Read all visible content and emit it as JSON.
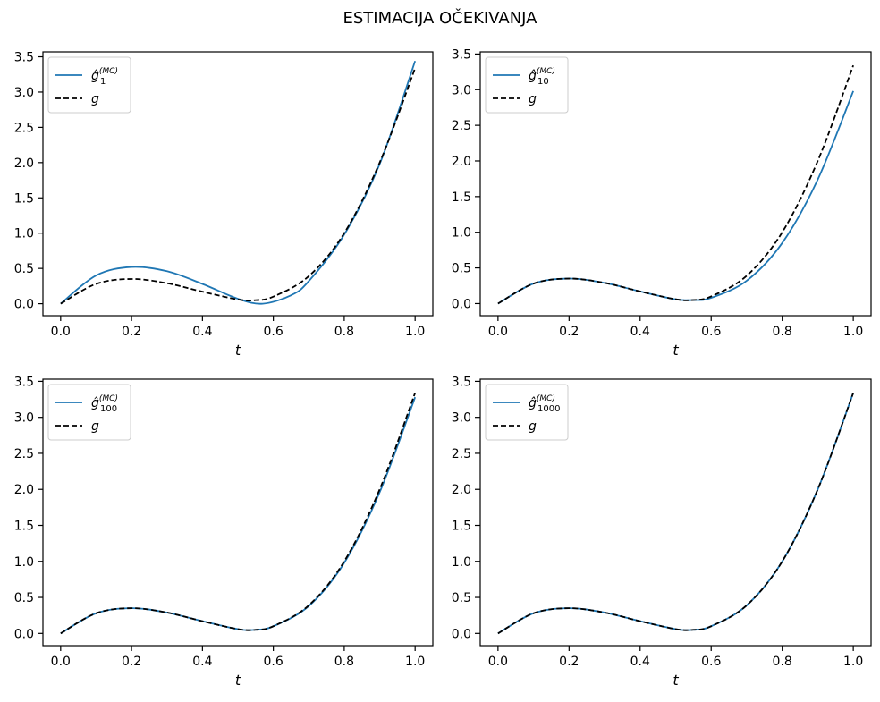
{
  "figure": {
    "title": "ESTIMACIJA OČEKIVANJA"
  },
  "colors": {
    "estimate": "#1f77b4",
    "true": "#000000"
  },
  "chart_data": [
    {
      "type": "line",
      "xlabel": "t",
      "ylabel": "",
      "xlim": [
        -0.05,
        1.05
      ],
      "ylim": [
        -0.17,
        3.57
      ],
      "xticks": [
        0.0,
        0.2,
        0.4,
        0.6,
        0.8,
        1.0
      ],
      "xtick_labels": [
        "0.0",
        "0.2",
        "0.4",
        "0.6",
        "0.8",
        "1.0"
      ],
      "yticks": [
        0.0,
        0.5,
        1.0,
        1.5,
        2.0,
        2.5,
        3.0,
        3.5
      ],
      "ytick_labels": [
        "0.0",
        "0.5",
        "1.0",
        "1.5",
        "2.0",
        "2.5",
        "3.0",
        "3.5"
      ],
      "legend": "top-left",
      "grid": false,
      "series": [
        {
          "name": "ĝ₁⁽ᴹᶜ⁾",
          "label_base": "ĝ",
          "label_sub": "1",
          "label_sup": "(MC)",
          "style": "solid",
          "x": [
            0.0,
            0.1,
            0.2,
            0.3,
            0.4,
            0.5,
            0.57,
            0.65,
            0.7,
            0.8,
            0.9,
            1.0
          ],
          "y": [
            0.0,
            0.4,
            0.52,
            0.46,
            0.28,
            0.07,
            0.0,
            0.12,
            0.32,
            0.98,
            1.98,
            3.44
          ]
        },
        {
          "name": "g",
          "label_base": "g",
          "style": "dashed",
          "x": [
            0.0,
            0.1,
            0.2,
            0.3,
            0.4,
            0.5,
            0.55,
            0.6,
            0.7,
            0.8,
            0.9,
            1.0
          ],
          "y": [
            0.0,
            0.28,
            0.35,
            0.29,
            0.17,
            0.06,
            0.05,
            0.1,
            0.39,
            1.0,
            2.0,
            3.34
          ]
        }
      ]
    },
    {
      "type": "line",
      "xlabel": "t",
      "ylabel": "",
      "xlim": [
        -0.05,
        1.05
      ],
      "ylim": [
        -0.17,
        3.53
      ],
      "xticks": [
        0.0,
        0.2,
        0.4,
        0.6,
        0.8,
        1.0
      ],
      "xtick_labels": [
        "0.0",
        "0.2",
        "0.4",
        "0.6",
        "0.8",
        "1.0"
      ],
      "yticks": [
        0.0,
        0.5,
        1.0,
        1.5,
        2.0,
        2.5,
        3.0,
        3.5
      ],
      "ytick_labels": [
        "0.0",
        "0.5",
        "1.0",
        "1.5",
        "2.0",
        "2.5",
        "3.0",
        "3.5"
      ],
      "legend": "top-left",
      "grid": false,
      "series": [
        {
          "name": "ĝ₁₀⁽ᴹᶜ⁾",
          "label_base": "ĝ",
          "label_sub": "10",
          "label_sup": "(MC)",
          "style": "solid",
          "x": [
            0.0,
            0.1,
            0.2,
            0.3,
            0.4,
            0.5,
            0.55,
            0.6,
            0.7,
            0.8,
            0.9,
            1.0
          ],
          "y": [
            0.0,
            0.28,
            0.35,
            0.29,
            0.17,
            0.06,
            0.05,
            0.08,
            0.32,
            0.85,
            1.74,
            2.98
          ]
        },
        {
          "name": "g",
          "label_base": "g",
          "style": "dashed",
          "x": [
            0.0,
            0.1,
            0.2,
            0.3,
            0.4,
            0.5,
            0.55,
            0.6,
            0.7,
            0.8,
            0.9,
            1.0
          ],
          "y": [
            0.0,
            0.28,
            0.35,
            0.29,
            0.17,
            0.06,
            0.05,
            0.1,
            0.39,
            1.0,
            2.0,
            3.34
          ]
        }
      ]
    },
    {
      "type": "line",
      "xlabel": "t",
      "ylabel": "",
      "xlim": [
        -0.05,
        1.05
      ],
      "ylim": [
        -0.17,
        3.53
      ],
      "xticks": [
        0.0,
        0.2,
        0.4,
        0.6,
        0.8,
        1.0
      ],
      "xtick_labels": [
        "0.0",
        "0.2",
        "0.4",
        "0.6",
        "0.8",
        "1.0"
      ],
      "yticks": [
        0.0,
        0.5,
        1.0,
        1.5,
        2.0,
        2.5,
        3.0,
        3.5
      ],
      "ytick_labels": [
        "0.0",
        "0.5",
        "1.0",
        "1.5",
        "2.0",
        "2.5",
        "3.0",
        "3.5"
      ],
      "legend": "top-left",
      "grid": false,
      "series": [
        {
          "name": "ĝ₁₀₀⁽ᴹᶜ⁾",
          "label_base": "ĝ",
          "label_sub": "100",
          "label_sup": "(MC)",
          "style": "solid",
          "x": [
            0.0,
            0.1,
            0.2,
            0.3,
            0.4,
            0.5,
            0.55,
            0.6,
            0.7,
            0.8,
            0.9,
            1.0
          ],
          "y": [
            0.0,
            0.28,
            0.35,
            0.29,
            0.17,
            0.06,
            0.05,
            0.1,
            0.38,
            0.98,
            1.96,
            3.28
          ]
        },
        {
          "name": "g",
          "label_base": "g",
          "style": "dashed",
          "x": [
            0.0,
            0.1,
            0.2,
            0.3,
            0.4,
            0.5,
            0.55,
            0.6,
            0.7,
            0.8,
            0.9,
            1.0
          ],
          "y": [
            0.0,
            0.28,
            0.35,
            0.29,
            0.17,
            0.06,
            0.05,
            0.1,
            0.39,
            1.0,
            2.0,
            3.34
          ]
        }
      ]
    },
    {
      "type": "line",
      "xlabel": "t",
      "ylabel": "",
      "xlim": [
        -0.05,
        1.05
      ],
      "ylim": [
        -0.17,
        3.53
      ],
      "xticks": [
        0.0,
        0.2,
        0.4,
        0.6,
        0.8,
        1.0
      ],
      "xtick_labels": [
        "0.0",
        "0.2",
        "0.4",
        "0.6",
        "0.8",
        "1.0"
      ],
      "yticks": [
        0.0,
        0.5,
        1.0,
        1.5,
        2.0,
        2.5,
        3.0,
        3.5
      ],
      "ytick_labels": [
        "0.0",
        "0.5",
        "1.0",
        "1.5",
        "2.0",
        "2.5",
        "3.0",
        "3.5"
      ],
      "legend": "top-left",
      "grid": false,
      "series": [
        {
          "name": "ĝ₁₀₀₀⁽ᴹᶜ⁾",
          "label_base": "ĝ",
          "label_sub": "1000",
          "label_sup": "(MC)",
          "style": "solid",
          "x": [
            0.0,
            0.1,
            0.2,
            0.3,
            0.4,
            0.5,
            0.55,
            0.6,
            0.7,
            0.8,
            0.9,
            1.0
          ],
          "y": [
            0.0,
            0.28,
            0.35,
            0.29,
            0.17,
            0.06,
            0.05,
            0.1,
            0.39,
            1.0,
            2.0,
            3.34
          ]
        },
        {
          "name": "g",
          "label_base": "g",
          "style": "dashed",
          "x": [
            0.0,
            0.1,
            0.2,
            0.3,
            0.4,
            0.5,
            0.55,
            0.6,
            0.7,
            0.8,
            0.9,
            1.0
          ],
          "y": [
            0.0,
            0.28,
            0.35,
            0.29,
            0.17,
            0.06,
            0.05,
            0.1,
            0.39,
            1.0,
            2.0,
            3.34
          ]
        }
      ]
    }
  ]
}
